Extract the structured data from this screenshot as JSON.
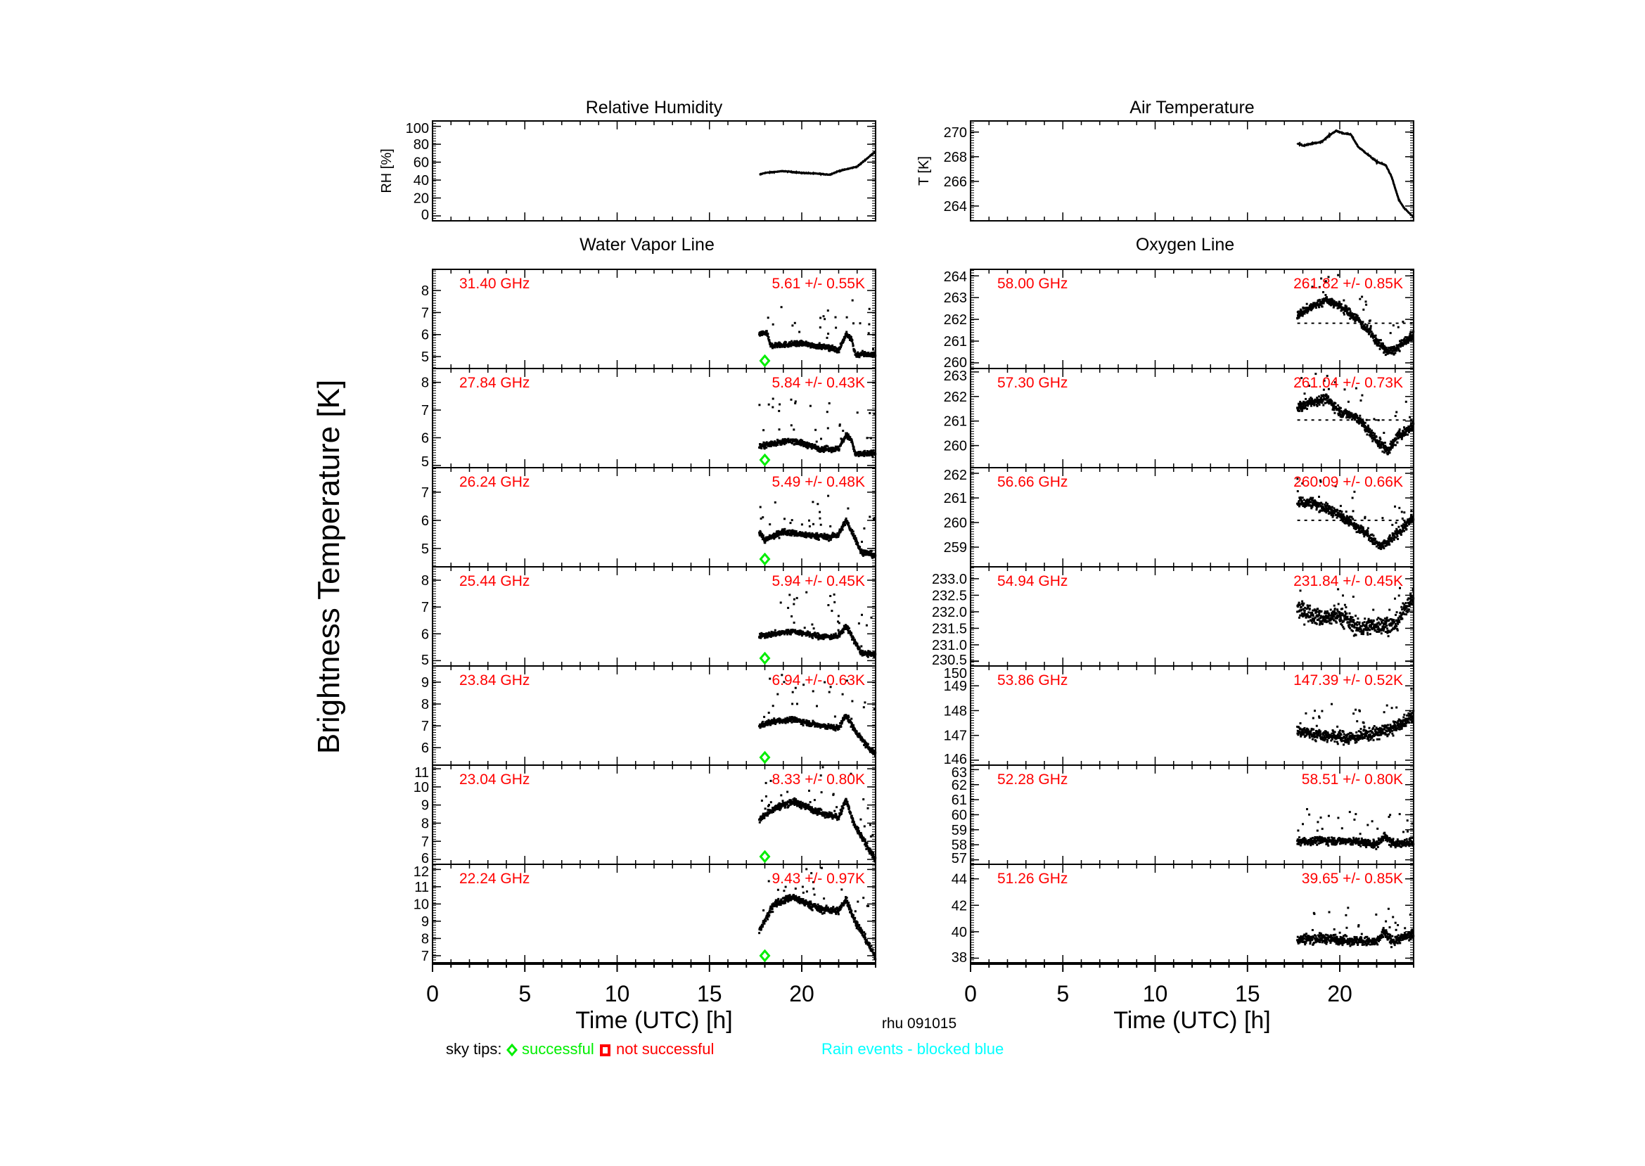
{
  "figure": {
    "ylabel": "Brightness Temperature [K]",
    "station_date": "rhu 091015",
    "legend": {
      "sky_tips_label": "sky tips:",
      "successful_label": "successful",
      "not_successful_label": "not successful",
      "rain_label": "Rain events - blocked blue"
    },
    "colors": {
      "data": "#000000",
      "label": "#ff0000",
      "success": "#00ee00",
      "fail": "#ff0000",
      "rain": "#00ffff"
    }
  },
  "chart_data": [
    {
      "type": "line",
      "title": "Relative Humidity",
      "ylabel": "RH [%]",
      "xlim": [
        0,
        24
      ],
      "ylim": [
        -5.5,
        106
      ],
      "yticks": [
        "0",
        "20",
        "40",
        "60",
        "80",
        "100"
      ],
      "trend": [
        [
          17.7,
          46
        ],
        [
          18,
          48
        ],
        [
          19,
          50
        ],
        [
          20,
          48
        ],
        [
          21,
          47
        ],
        [
          21.5,
          46
        ],
        [
          22,
          50
        ],
        [
          23,
          55
        ],
        [
          24,
          72
        ]
      ]
    },
    {
      "type": "line",
      "title": "Air Temperature",
      "ylabel": "T [K]",
      "xlim": [
        0,
        24
      ],
      "ylim": [
        262.8,
        270.9
      ],
      "yticks": [
        "264",
        "266",
        "268",
        "270"
      ],
      "trend": [
        [
          17.7,
          269.1
        ],
        [
          18,
          268.9
        ],
        [
          19,
          269.2
        ],
        [
          19.5,
          269.8
        ],
        [
          19.8,
          270.1
        ],
        [
          20.2,
          269.9
        ],
        [
          20.6,
          269.8
        ],
        [
          21,
          268.8
        ],
        [
          21.5,
          268.2
        ],
        [
          22,
          267.6
        ],
        [
          22.5,
          267.3
        ],
        [
          22.8,
          266.4
        ],
        [
          23.2,
          264.5
        ],
        [
          23.5,
          263.8
        ],
        [
          24,
          263.1
        ]
      ]
    }
  ],
  "water_vapor": {
    "title": "Water Vapor Line",
    "xlabel": "Time (UTC) [h]",
    "xticks": [
      "0",
      "5",
      "10",
      "15",
      "20"
    ],
    "panels": [
      {
        "freq": "31.40 GHz",
        "stats": "5.61 +/-  0.55K",
        "ylim": [
          4.46,
          8.96
        ],
        "yticks": [
          "5",
          "6",
          "7",
          "8"
        ],
        "sky_tip_time": 18.0,
        "noise": 0.12,
        "trend": [
          [
            17.7,
            6.0
          ],
          [
            18.1,
            6.1
          ],
          [
            18.3,
            5.5
          ],
          [
            20,
            5.6
          ],
          [
            21.5,
            5.4
          ],
          [
            22,
            5.3
          ],
          [
            22.4,
            6.0
          ],
          [
            22.7,
            5.8
          ],
          [
            22.9,
            5.1
          ],
          [
            24,
            5.1
          ]
        ]
      },
      {
        "freq": "27.84 GHz",
        "stats": "5.84 +/-  0.43K",
        "ylim": [
          4.92,
          8.5
        ],
        "yticks": [
          "5",
          "6",
          "7",
          "8"
        ],
        "sky_tip_time": 18.0,
        "noise": 0.1,
        "trend": [
          [
            17.7,
            5.7
          ],
          [
            18.5,
            5.8
          ],
          [
            19.5,
            5.9
          ],
          [
            20,
            5.8
          ],
          [
            21,
            5.6
          ],
          [
            22,
            5.6
          ],
          [
            22.4,
            6.1
          ],
          [
            22.7,
            5.9
          ],
          [
            22.9,
            5.4
          ],
          [
            24,
            5.45
          ]
        ]
      },
      {
        "freq": "26.24 GHz",
        "stats": "5.49 +/-  0.48K",
        "ylim": [
          4.35,
          7.87
        ],
        "yticks": [
          "5",
          "6",
          "7"
        ],
        "sky_tip_time": 18.0,
        "noise": 0.1,
        "trend": [
          [
            17.7,
            5.6
          ],
          [
            18,
            5.3
          ],
          [
            19,
            5.6
          ],
          [
            20,
            5.5
          ],
          [
            21.5,
            5.4
          ],
          [
            22,
            5.5
          ],
          [
            22.4,
            6.0
          ],
          [
            22.8,
            5.5
          ],
          [
            23.2,
            4.9
          ],
          [
            24,
            4.75
          ]
        ]
      },
      {
        "freq": "25.44 GHz",
        "stats": "5.94 +/-  0.45K",
        "ylim": [
          4.8,
          8.5
        ],
        "yticks": [
          "5",
          "6",
          "7",
          "8"
        ],
        "sky_tip_time": 18.0,
        "noise": 0.1,
        "trend": [
          [
            17.7,
            5.9
          ],
          [
            18.5,
            6.0
          ],
          [
            19.5,
            6.1
          ],
          [
            21,
            5.9
          ],
          [
            22,
            5.9
          ],
          [
            22.4,
            6.3
          ],
          [
            22.8,
            5.8
          ],
          [
            23.2,
            5.3
          ],
          [
            24,
            5.2
          ]
        ]
      },
      {
        "freq": "23.84 GHz",
        "stats": "6.94 +/-  0.63K",
        "ylim": [
          5.2,
          9.74
        ],
        "yticks": [
          "6",
          "7",
          "8",
          "9"
        ],
        "sky_tip_time": 18.0,
        "noise": 0.12,
        "trend": [
          [
            17.7,
            7.0
          ],
          [
            18.5,
            7.2
          ],
          [
            19.5,
            7.3
          ],
          [
            21,
            7.0
          ],
          [
            22,
            6.9
          ],
          [
            22.4,
            7.5
          ],
          [
            22.8,
            6.9
          ],
          [
            23.5,
            6.1
          ],
          [
            24,
            5.7
          ]
        ]
      },
      {
        "freq": "23.04 GHz",
        "stats": "8.33 +/-  0.80K",
        "ylim": [
          5.73,
          11.2
        ],
        "yticks": [
          "6",
          "7",
          "8",
          "9",
          "10",
          "11"
        ],
        "sky_tip_time": 18.0,
        "noise": 0.18,
        "trend": [
          [
            17.7,
            8.2
          ],
          [
            18.5,
            8.8
          ],
          [
            19.5,
            9.2
          ],
          [
            21,
            8.6
          ],
          [
            22,
            8.3
          ],
          [
            22.4,
            9.3
          ],
          [
            22.8,
            8.0
          ],
          [
            23.5,
            6.8
          ],
          [
            24,
            6.0
          ]
        ]
      },
      {
        "freq": "22.24 GHz",
        "stats": "9.43 +/-  0.97K",
        "ylim": [
          6.55,
          12.3
        ],
        "yticks": [
          "7",
          "8",
          "9",
          "10",
          "11",
          "12"
        ],
        "sky_tip_time": 18.0,
        "noise": 0.2,
        "trend": [
          [
            17.7,
            8.4
          ],
          [
            18.5,
            10.0
          ],
          [
            19.5,
            10.4
          ],
          [
            21,
            9.7
          ],
          [
            22,
            9.6
          ],
          [
            22.4,
            10.3
          ],
          [
            22.8,
            9.2
          ],
          [
            23.5,
            7.9
          ],
          [
            24,
            6.9
          ]
        ]
      }
    ]
  },
  "oxygen": {
    "title": "Oxygen Line",
    "xlabel": "Time (UTC) [h]",
    "xticks": [
      "0",
      "5",
      "10",
      "15",
      "20"
    ],
    "panels": [
      {
        "freq": "58.00 GHz",
        "stats": "261.82 +/-  0.85K",
        "mean": 261.82,
        "ylim": [
          259.74,
          264.3
        ],
        "yticks": [
          "260",
          "261",
          "262",
          "263",
          "264"
        ],
        "noise": 0.2,
        "trend": [
          [
            17.7,
            262.2
          ],
          [
            18.5,
            262.6
          ],
          [
            19.3,
            262.9
          ],
          [
            20,
            262.6
          ],
          [
            21,
            262.0
          ],
          [
            22,
            261.0
          ],
          [
            22.6,
            260.5
          ],
          [
            23,
            260.6
          ],
          [
            24,
            261.3
          ]
        ]
      },
      {
        "freq": "57.30 GHz",
        "stats": "261.04 +/-  0.73K",
        "mean": 261.04,
        "ylim": [
          259.1,
          263.14
        ],
        "yticks": [
          "260",
          "261",
          "262",
          "263"
        ],
        "noise": 0.2,
        "trend": [
          [
            17.7,
            261.5
          ],
          [
            18.5,
            261.8
          ],
          [
            19.3,
            261.9
          ],
          [
            20,
            261.4
          ],
          [
            21,
            261.1
          ],
          [
            22,
            260.2
          ],
          [
            22.6,
            259.8
          ],
          [
            23.2,
            260.4
          ],
          [
            24,
            260.8
          ]
        ]
      },
      {
        "freq": "56.66 GHz",
        "stats": "260.09 +/-  0.66K",
        "mean": 260.09,
        "ylim": [
          258.2,
          262.23
        ],
        "yticks": [
          "259",
          "260",
          "261",
          "262"
        ],
        "noise": 0.2,
        "trend": [
          [
            17.7,
            260.8
          ],
          [
            18.5,
            260.8
          ],
          [
            19.5,
            260.5
          ],
          [
            20.5,
            260.1
          ],
          [
            21.5,
            259.5
          ],
          [
            22.2,
            259.0
          ],
          [
            22.6,
            259.2
          ],
          [
            24,
            260.2
          ]
        ]
      },
      {
        "freq": "54.94 GHz",
        "stats": "231.84 +/-  0.45K",
        "ylim": [
          230.36,
          233.36
        ],
        "yticks": [
          "230.5",
          "231.0",
          "231.5",
          "232.0",
          "232.5",
          "233.0"
        ],
        "noise": 0.25,
        "trend": [
          [
            17.7,
            232.1
          ],
          [
            19,
            231.8
          ],
          [
            20,
            231.9
          ],
          [
            21,
            231.5
          ],
          [
            22,
            231.6
          ],
          [
            23,
            231.6
          ],
          [
            24,
            232.5
          ]
        ]
      },
      {
        "freq": "53.86 GHz",
        "stats": "147.39 +/-  0.52K",
        "ylim": [
          145.8,
          149.8
        ],
        "yticks": [
          "146",
          "147",
          "148",
          "149",
          "150"
        ],
        "noise": 0.25,
        "trend": [
          [
            17.7,
            147.2
          ],
          [
            19,
            147.0
          ],
          [
            20.5,
            146.9
          ],
          [
            22,
            147.1
          ],
          [
            23,
            147.3
          ],
          [
            24,
            147.8
          ]
        ]
      },
      {
        "freq": "52.28 GHz",
        "stats": "58.51 +/-  0.80K",
        "ylim": [
          56.7,
          63.3
        ],
        "yticks": [
          "57",
          "58",
          "59",
          "60",
          "61",
          "62",
          "63"
        ],
        "noise": 0.25,
        "trend": [
          [
            17.7,
            58.2
          ],
          [
            19,
            58.3
          ],
          [
            21,
            58.2
          ],
          [
            22,
            58.0
          ],
          [
            22.4,
            58.6
          ],
          [
            22.8,
            58.1
          ],
          [
            24,
            58.1
          ]
        ]
      },
      {
        "freq": "51.26 GHz",
        "stats": "39.65 +/-  0.85K",
        "ylim": [
          37.6,
          45.1
        ],
        "yticks": [
          "38",
          "40",
          "42",
          "44"
        ],
        "noise": 0.35,
        "trend": [
          [
            17.7,
            39.4
          ],
          [
            19,
            39.5
          ],
          [
            21,
            39.3
          ],
          [
            22,
            39.2
          ],
          [
            22.4,
            40.0
          ],
          [
            22.8,
            39.3
          ],
          [
            24,
            39.8
          ]
        ]
      }
    ]
  }
}
